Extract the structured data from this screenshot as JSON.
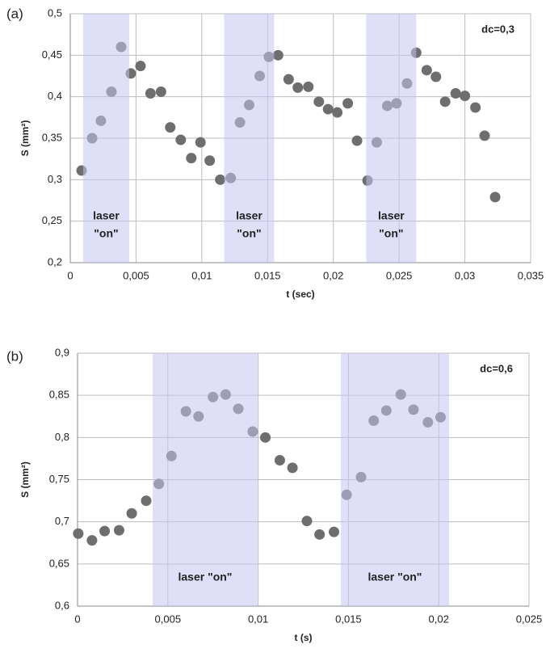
{
  "chart_data": [
    {
      "type": "scatter",
      "panel_label": "(a)",
      "annotation": "dc=0,3",
      "xlabel": "t (sec)",
      "ylabel": "S (mm²)",
      "color": "#6e6e6e",
      "shade_color": "#c4c4f2",
      "grid": true,
      "xlim": [
        0,
        0.035
      ],
      "ylim": [
        0.2,
        0.5
      ],
      "xticks": [
        0,
        {
          "value": 0.005,
          "label": "0,005"
        },
        {
          "value": 0.01,
          "label": "0,01"
        },
        {
          "value": 0.015,
          "label": "0,015"
        },
        {
          "value": 0.02,
          "label": "0,02"
        },
        {
          "value": 0.025,
          "label": "0,025"
        },
        {
          "value": 0.03,
          "label": "0,03"
        },
        {
          "value": 0.035,
          "label": "0,035"
        }
      ],
      "yticks": [
        {
          "value": 0.2,
          "label": "0,2"
        },
        {
          "value": 0.25,
          "label": "0,25"
        },
        {
          "value": 0.3,
          "label": "0,3"
        },
        {
          "value": 0.35,
          "label": "0,35"
        },
        {
          "value": 0.4,
          "label": "0,4"
        },
        {
          "value": 0.45,
          "label": "0,45"
        },
        {
          "value": 0.5,
          "label": "0,5"
        }
      ],
      "x": [
        0.00086,
        0.00166,
        0.00233,
        0.00313,
        0.00387,
        0.0046,
        0.00534,
        0.0061,
        0.0069,
        0.0076,
        0.0084,
        0.0092,
        0.0099,
        0.0106,
        0.0114,
        0.0122,
        0.0129,
        0.0136,
        0.0144,
        0.0151,
        0.0158,
        0.0166,
        0.0173,
        0.0181,
        0.0189,
        0.0196,
        0.0203,
        0.0211,
        0.0218,
        0.0226,
        0.0233,
        0.0241,
        0.0248,
        0.0256,
        0.0263,
        0.0271,
        0.0278,
        0.0285,
        0.0293,
        0.03,
        0.0308,
        0.0315,
        0.0323
      ],
      "values": [
        0.311,
        0.35,
        0.371,
        0.406,
        0.46,
        0.428,
        0.437,
        0.404,
        0.406,
        0.363,
        0.348,
        0.326,
        0.345,
        0.323,
        0.3,
        0.302,
        0.369,
        0.39,
        0.425,
        0.448,
        0.45,
        0.421,
        0.411,
        0.412,
        0.394,
        0.385,
        0.381,
        0.392,
        0.347,
        0.299,
        0.345,
        0.389,
        0.392,
        0.416,
        0.453,
        0.432,
        0.424,
        0.394,
        0.404,
        0.401,
        0.387,
        0.353,
        0.279
      ],
      "shaded_regions": [
        {
          "x": [
            0.00098,
            0.00448
          ],
          "label": [
            "laser",
            "\"on\""
          ]
        },
        {
          "x": [
            0.0117,
            0.0155
          ],
          "label": [
            "laser",
            "\"on\""
          ]
        },
        {
          "x": [
            0.0225,
            0.0263
          ],
          "label": [
            "laser",
            "\"on\""
          ]
        }
      ]
    },
    {
      "type": "scatter",
      "panel_label": "(b)",
      "annotation": "dc=0,6",
      "xlabel": "t (s)",
      "ylabel": "S (mm²)",
      "color": "#6e6e6e",
      "shade_color": "#c4c4f2",
      "grid": true,
      "xlim": [
        0,
        0.025
      ],
      "ylim": [
        0.6,
        0.9
      ],
      "xticks": [
        0,
        {
          "value": 0.005,
          "label": "0,005"
        },
        {
          "value": 0.01,
          "label": "0,01"
        },
        {
          "value": 0.015,
          "label": "0,015"
        },
        {
          "value": 0.02,
          "label": "0,02"
        },
        {
          "value": 0.025,
          "label": "0,025"
        }
      ],
      "yticks": [
        {
          "value": 0.6,
          "label": "0,6"
        },
        {
          "value": 0.65,
          "label": "0,65"
        },
        {
          "value": 0.7,
          "label": "0,7"
        },
        {
          "value": 0.75,
          "label": "0,75"
        },
        {
          "value": 0.8,
          "label": "0,8"
        },
        {
          "value": 0.85,
          "label": "0,85"
        },
        {
          "value": 0.9,
          "label": "0,9"
        }
      ],
      "x": [
        4e-05,
        0.0008,
        0.0015,
        0.0023,
        0.003,
        0.0038,
        0.0045,
        0.0052,
        0.006,
        0.0067,
        0.0075,
        0.0082,
        0.0089,
        0.0097,
        0.0104,
        0.0112,
        0.0119,
        0.0127,
        0.0134,
        0.0142,
        0.0149,
        0.0157,
        0.0164,
        0.0171,
        0.0179,
        0.0186,
        0.0194,
        0.0201
      ],
      "values": [
        0.686,
        0.678,
        0.689,
        0.69,
        0.71,
        0.725,
        0.745,
        0.778,
        0.831,
        0.825,
        0.848,
        0.851,
        0.834,
        0.807,
        0.8,
        0.773,
        0.764,
        0.701,
        0.685,
        0.688,
        0.732,
        0.753,
        0.82,
        0.832,
        0.851,
        0.833,
        0.818,
        0.824
      ],
      "shaded_regions": [
        {
          "x": [
            0.00416,
            0.00997
          ],
          "label": [
            "laser \"on\""
          ]
        },
        {
          "x": [
            0.01458,
            0.02057
          ],
          "label": [
            "laser \"on\""
          ]
        }
      ]
    }
  ]
}
